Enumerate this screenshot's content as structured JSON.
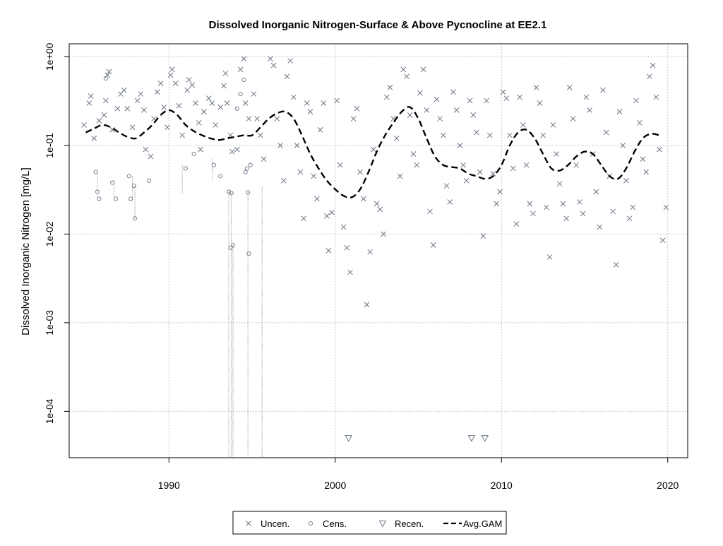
{
  "chart_data": {
    "type": "scatter",
    "title": "Dissolved Inorganic Nitrogen-Surface & Above Pycnocline at EE2.1",
    "xlabel": "",
    "ylabel": "Dissolved Inorganic Nitrogen [mg/L]",
    "xlim": [
      1984,
      2021.2
    ],
    "ylim": [
      3e-05,
      1.4
    ],
    "yscale": "log",
    "x_ticks": [
      1990,
      2000,
      2010,
      2020
    ],
    "x_tick_labels": [
      "1990",
      "2000",
      "2010",
      "2020"
    ],
    "y_ticks": [
      0.0001,
      0.001,
      0.01,
      0.1,
      1
    ],
    "y_tick_labels": [
      "1e-04",
      "1e-03",
      "1e-02",
      "1e-01",
      "1e+00"
    ],
    "grid": true,
    "legend_position": "bottom",
    "colors": {
      "points": "#6b7486",
      "gam": "#000000",
      "grid": "#c8c8c8"
    },
    "legend": [
      {
        "label": "Uncen.",
        "marker": "x"
      },
      {
        "label": "Cens.",
        "marker": "circle"
      },
      {
        "label": "Recen.",
        "marker": "triangle-down"
      },
      {
        "label": "Avg.GAM",
        "marker": "dashed-line"
      }
    ],
    "series": [
      {
        "name": "Uncen.",
        "marker": "x",
        "points": [
          [
            1984.9,
            0.17
          ],
          [
            1985.2,
            0.3
          ],
          [
            1985.3,
            0.36
          ],
          [
            1985.5,
            0.12
          ],
          [
            1985.8,
            0.19
          ],
          [
            1986.1,
            0.22
          ],
          [
            1986.2,
            0.32
          ],
          [
            1986.3,
            0.62
          ],
          [
            1986.4,
            0.68
          ],
          [
            1986.6,
            0.15
          ],
          [
            1986.9,
            0.26
          ],
          [
            1987.1,
            0.38
          ],
          [
            1987.3,
            0.42
          ],
          [
            1987.5,
            0.26
          ],
          [
            1987.8,
            0.16
          ],
          [
            1988.1,
            0.32
          ],
          [
            1988.3,
            0.38
          ],
          [
            1988.5,
            0.25
          ],
          [
            1988.6,
            0.09
          ],
          [
            1988.9,
            0.075
          ],
          [
            1989.1,
            0.2
          ],
          [
            1989.3,
            0.4
          ],
          [
            1989.5,
            0.5
          ],
          [
            1989.7,
            0.27
          ],
          [
            1989.9,
            0.16
          ],
          [
            1990.1,
            0.62
          ],
          [
            1990.2,
            0.72
          ],
          [
            1990.4,
            0.5
          ],
          [
            1990.6,
            0.28
          ],
          [
            1990.8,
            0.13
          ],
          [
            1991.1,
            0.42
          ],
          [
            1991.2,
            0.55
          ],
          [
            1991.4,
            0.48
          ],
          [
            1991.6,
            0.3
          ],
          [
            1991.8,
            0.18
          ],
          [
            1991.9,
            0.09
          ],
          [
            1992.1,
            0.24
          ],
          [
            1992.4,
            0.34
          ],
          [
            1992.6,
            0.3
          ],
          [
            1992.8,
            0.17
          ],
          [
            1993.1,
            0.27
          ],
          [
            1993.3,
            0.47
          ],
          [
            1993.4,
            0.65
          ],
          [
            1993.5,
            0.3
          ],
          [
            1993.7,
            0.13
          ],
          [
            1993.8,
            0.085
          ],
          [
            1994.1,
            0.09
          ],
          [
            1994.3,
            0.72
          ],
          [
            1994.5,
            0.95
          ],
          [
            1994.6,
            0.3
          ],
          [
            1994.8,
            0.2
          ],
          [
            1995.1,
            0.38
          ],
          [
            1995.3,
            0.2
          ],
          [
            1995.5,
            0.13
          ],
          [
            1995.7,
            0.07
          ],
          [
            1996.1,
            0.95
          ],
          [
            1996.3,
            0.8
          ],
          [
            1996.5,
            0.2
          ],
          [
            1996.7,
            0.1
          ],
          [
            1996.9,
            0.04
          ],
          [
            1997.1,
            0.6
          ],
          [
            1997.3,
            0.9
          ],
          [
            1997.5,
            0.35
          ],
          [
            1997.7,
            0.1
          ],
          [
            1997.9,
            0.05
          ],
          [
            1998.1,
            0.015
          ],
          [
            1998.3,
            0.3
          ],
          [
            1998.5,
            0.24
          ],
          [
            1998.7,
            0.045
          ],
          [
            1998.9,
            0.025
          ],
          [
            1999.1,
            0.15
          ],
          [
            1999.3,
            0.3
          ],
          [
            1999.5,
            0.016
          ],
          [
            1999.6,
            0.0065
          ],
          [
            1999.8,
            0.0175
          ],
          [
            2000.1,
            0.32
          ],
          [
            2000.3,
            0.06
          ],
          [
            2000.5,
            0.012
          ],
          [
            2000.7,
            0.007
          ],
          [
            2000.9,
            0.0037
          ],
          [
            2001.1,
            0.2
          ],
          [
            2001.3,
            0.26
          ],
          [
            2001.5,
            0.05
          ],
          [
            2001.7,
            0.025
          ],
          [
            2001.9,
            0.0016
          ],
          [
            2002.1,
            0.0063
          ],
          [
            2002.3,
            0.09
          ],
          [
            2002.5,
            0.022
          ],
          [
            2002.7,
            0.019
          ],
          [
            2002.9,
            0.01
          ],
          [
            2003.1,
            0.35
          ],
          [
            2003.3,
            0.45
          ],
          [
            2003.5,
            0.2
          ],
          [
            2003.7,
            0.12
          ],
          [
            2003.9,
            0.045
          ],
          [
            2004.1,
            0.72
          ],
          [
            2004.3,
            0.6
          ],
          [
            2004.5,
            0.22
          ],
          [
            2004.7,
            0.08
          ],
          [
            2004.9,
            0.06
          ],
          [
            2005.1,
            0.39
          ],
          [
            2005.3,
            0.72
          ],
          [
            2005.5,
            0.25
          ],
          [
            2005.7,
            0.018
          ],
          [
            2005.9,
            0.0075
          ],
          [
            2006.1,
            0.33
          ],
          [
            2006.3,
            0.2
          ],
          [
            2006.5,
            0.13
          ],
          [
            2006.7,
            0.035
          ],
          [
            2006.9,
            0.023
          ],
          [
            2007.1,
            0.4
          ],
          [
            2007.3,
            0.25
          ],
          [
            2007.5,
            0.1
          ],
          [
            2007.7,
            0.06
          ],
          [
            2007.9,
            0.04
          ],
          [
            2008.1,
            0.32
          ],
          [
            2008.3,
            0.22
          ],
          [
            2008.5,
            0.14
          ],
          [
            2008.7,
            0.05
          ],
          [
            2008.9,
            0.0095
          ],
          [
            2009.1,
            0.32
          ],
          [
            2009.3,
            0.13
          ],
          [
            2009.5,
            0.048
          ],
          [
            2009.7,
            0.022
          ],
          [
            2009.9,
            0.03
          ],
          [
            2010.1,
            0.4
          ],
          [
            2010.3,
            0.34
          ],
          [
            2010.5,
            0.13
          ],
          [
            2010.7,
            0.055
          ],
          [
            2010.9,
            0.013
          ],
          [
            2011.1,
            0.35
          ],
          [
            2011.3,
            0.17
          ],
          [
            2011.5,
            0.06
          ],
          [
            2011.7,
            0.022
          ],
          [
            2011.9,
            0.017
          ],
          [
            2012.1,
            0.45
          ],
          [
            2012.3,
            0.3
          ],
          [
            2012.5,
            0.13
          ],
          [
            2012.7,
            0.02
          ],
          [
            2012.9,
            0.0055
          ],
          [
            2013.1,
            0.17
          ],
          [
            2013.3,
            0.08
          ],
          [
            2013.5,
            0.037
          ],
          [
            2013.7,
            0.022
          ],
          [
            2013.9,
            0.015
          ],
          [
            2014.1,
            0.45
          ],
          [
            2014.3,
            0.2
          ],
          [
            2014.5,
            0.06
          ],
          [
            2014.7,
            0.023
          ],
          [
            2014.9,
            0.017
          ],
          [
            2015.1,
            0.35
          ],
          [
            2015.3,
            0.25
          ],
          [
            2015.5,
            0.08
          ],
          [
            2015.7,
            0.03
          ],
          [
            2015.9,
            0.012
          ],
          [
            2016.1,
            0.42
          ],
          [
            2016.3,
            0.14
          ],
          [
            2016.5,
            0.045
          ],
          [
            2016.7,
            0.018
          ],
          [
            2016.9,
            0.0045
          ],
          [
            2017.1,
            0.24
          ],
          [
            2017.3,
            0.1
          ],
          [
            2017.5,
            0.04
          ],
          [
            2017.7,
            0.015
          ],
          [
            2017.9,
            0.02
          ],
          [
            2018.1,
            0.32
          ],
          [
            2018.3,
            0.18
          ],
          [
            2018.5,
            0.07
          ],
          [
            2018.7,
            0.05
          ],
          [
            2018.9,
            0.6
          ],
          [
            2019.1,
            0.8
          ],
          [
            2019.3,
            0.35
          ],
          [
            2019.5,
            0.09
          ],
          [
            2019.7,
            0.0085
          ],
          [
            2019.9,
            0.02
          ]
        ]
      },
      {
        "name": "Cens.",
        "marker": "circle",
        "points": [
          [
            1985.6,
            0.05
          ],
          [
            1985.7,
            0.03
          ],
          [
            1985.8,
            0.025
          ],
          [
            1986.2,
            0.57
          ],
          [
            1986.6,
            0.038
          ],
          [
            1986.8,
            0.025
          ],
          [
            1987.6,
            0.045
          ],
          [
            1987.7,
            0.025
          ],
          [
            1987.9,
            0.035
          ],
          [
            1987.95,
            0.015
          ],
          [
            1988.8,
            0.04
          ],
          [
            1991.0,
            0.055
          ],
          [
            1991.5,
            0.08
          ],
          [
            1992.7,
            0.06
          ],
          [
            1993.1,
            0.045
          ],
          [
            1993.6,
            0.03
          ],
          [
            1993.7,
            0.007
          ],
          [
            1993.75,
            0.029
          ],
          [
            1993.85,
            0.0075
          ],
          [
            1994.1,
            0.26
          ],
          [
            1994.3,
            0.38
          ],
          [
            1994.5,
            0.55
          ],
          [
            1994.6,
            0.05
          ],
          [
            1994.7,
            0.055
          ],
          [
            1994.75,
            0.0295
          ],
          [
            1994.8,
            0.006
          ],
          [
            1994.9,
            0.06
          ]
        ],
        "ranges": [
          [
            1993.6,
            3e-05,
            0.03
          ],
          [
            1993.75,
            3e-05,
            0.029
          ],
          [
            1993.85,
            3e-05,
            0.0075
          ],
          [
            1994.75,
            3e-05,
            0.0295
          ],
          [
            1995.6,
            3e-05,
            0.034
          ],
          [
            1985.7,
            0.025,
            0.05
          ],
          [
            1986.7,
            0.025,
            0.04
          ],
          [
            1987.8,
            0.024,
            0.045
          ],
          [
            1987.95,
            0.015,
            0.035
          ],
          [
            1990.8,
            0.028,
            0.06
          ],
          [
            1992.6,
            0.04,
            0.07
          ]
        ]
      },
      {
        "name": "Recen.",
        "marker": "triangle-down",
        "points": [
          [
            2000.8,
            5e-05
          ],
          [
            2008.2,
            5e-05
          ],
          [
            2009.0,
            5e-05
          ]
        ]
      }
    ],
    "gam": {
      "name": "Avg.GAM",
      "x": [
        1985.0,
        1985.5,
        1986.0,
        1986.5,
        1987.0,
        1987.5,
        1988.0,
        1988.5,
        1989.0,
        1989.5,
        1990.0,
        1990.5,
        1991.0,
        1991.5,
        1992.0,
        1992.5,
        1993.0,
        1993.5,
        1994.0,
        1994.5,
        1995.0,
        1995.5,
        1996.0,
        1996.5,
        1997.0,
        1997.5,
        1998.0,
        1998.5,
        1999.0,
        1999.5,
        2000.0,
        2000.5,
        2001.0,
        2001.5,
        2002.0,
        2002.5,
        2003.0,
        2003.5,
        2004.0,
        2004.5,
        2005.0,
        2005.5,
        2006.0,
        2006.5,
        2007.0,
        2007.5,
        2008.0,
        2008.5,
        2009.0,
        2009.5,
        2010.0,
        2010.5,
        2011.0,
        2011.5,
        2012.0,
        2012.5,
        2013.0,
        2013.5,
        2014.0,
        2014.5,
        2015.0,
        2015.5,
        2016.0,
        2016.5,
        2017.0,
        2017.5,
        2018.0,
        2018.5,
        2019.0,
        2019.5
      ],
      "y": [
        0.14,
        0.155,
        0.17,
        0.16,
        0.14,
        0.125,
        0.12,
        0.14,
        0.17,
        0.22,
        0.25,
        0.22,
        0.17,
        0.145,
        0.13,
        0.12,
        0.115,
        0.12,
        0.125,
        0.13,
        0.13,
        0.16,
        0.2,
        0.23,
        0.24,
        0.2,
        0.13,
        0.08,
        0.055,
        0.04,
        0.032,
        0.027,
        0.026,
        0.032,
        0.05,
        0.085,
        0.13,
        0.18,
        0.24,
        0.27,
        0.2,
        0.12,
        0.075,
        0.06,
        0.057,
        0.055,
        0.048,
        0.045,
        0.042,
        0.045,
        0.06,
        0.1,
        0.14,
        0.15,
        0.12,
        0.08,
        0.055,
        0.052,
        0.06,
        0.075,
        0.085,
        0.08,
        0.06,
        0.045,
        0.042,
        0.055,
        0.085,
        0.12,
        0.135,
        0.13
      ]
    }
  }
}
